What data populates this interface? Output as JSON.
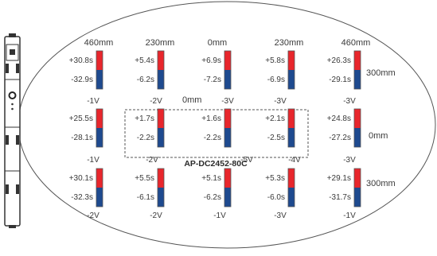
{
  "model_label": "AP-DC2452-80C",
  "center_label": "0mm",
  "top_labels": [
    "460mm",
    "230mm",
    "0mm",
    "230mm",
    "460mm"
  ],
  "right_labels": [
    "300mm",
    "0mm",
    "300mm"
  ],
  "colors": {
    "positive": "#e8262c",
    "negative": "#1e4a8f",
    "outline": "#555555",
    "text": "#3a3a3a"
  },
  "rows": [
    [
      {
        "pos": "+30.8s",
        "neg": "-32.9s",
        "volt": "-1V"
      },
      {
        "pos": "+5.4s",
        "neg": "-6.2s",
        "volt": "-2V"
      },
      {
        "pos": "+6.9s",
        "neg": "-7.2s",
        "volt": "-3V"
      },
      {
        "pos": "+5.8s",
        "neg": "-6.9s",
        "volt": "-3V"
      },
      {
        "pos": "+26.3s",
        "neg": "-29.1s",
        "volt": "-3V"
      }
    ],
    [
      {
        "pos": "+25.5s",
        "neg": "-28.1s",
        "volt": "-1V"
      },
      {
        "pos": "+1.7s",
        "neg": "-2.2s",
        "volt": "-2V"
      },
      {
        "pos": "+1.6s",
        "neg": "-2.2s",
        "volt": "-5V"
      },
      {
        "pos": "+2.1s",
        "neg": "-2.5s",
        "volt": "-4V"
      },
      {
        "pos": "+24.8s",
        "neg": "-27.2s",
        "volt": "-3V"
      }
    ],
    [
      {
        "pos": "+30.1s",
        "neg": "-32.3s",
        "volt": "-2V"
      },
      {
        "pos": "+5.5s",
        "neg": "-6.1s",
        "volt": "-2V"
      },
      {
        "pos": "+5.1s",
        "neg": "-6.2s",
        "volt": "-1V"
      },
      {
        "pos": "+5.3s",
        "neg": "-6.0s",
        "volt": "-3V"
      },
      {
        "pos": "+29.1s",
        "neg": "-31.7s",
        "volt": "-1V"
      }
    ]
  ]
}
